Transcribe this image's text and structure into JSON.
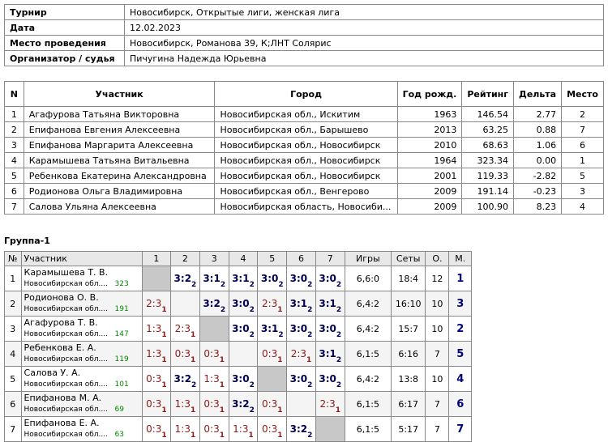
{
  "info": [
    [
      "Турнир",
      "Новосибирск, Открытые лиги, женская лига"
    ],
    [
      "Дата",
      "12.02.2023"
    ],
    [
      "Место проведения",
      "Новосибирск, Романова 39, К;ЛНТ Солярис"
    ],
    [
      "Организатор / судья",
      "Пичугина Надежда Юрьевна"
    ]
  ],
  "participants": {
    "header": [
      "N",
      "Участник",
      "Город",
      "Год рожд.",
      "Рейтинг",
      "Дельта",
      "Место"
    ],
    "rows": [
      [
        "1",
        "Агафурова Татьяна Викторовна",
        "Новосибирская обл., Искитим",
        "1963",
        "146.54",
        "2.77",
        "2"
      ],
      [
        "2",
        "Епифанова Евгения Алексеевна",
        "Новосибирская обл., Барышево",
        "2013",
        "63.25",
        "0.88",
        "7"
      ],
      [
        "3",
        "Епифанова Маргарита Алексеевна",
        "Новосибирская обл., Новосибирск",
        "2010",
        "68.63",
        "1.06",
        "6"
      ],
      [
        "4",
        "Карамышева Татьяна Витальевна",
        "Новосибирская обл., Новосибирск",
        "1964",
        "323.34",
        "0.00",
        "1"
      ],
      [
        "5",
        "Ребенкова Екатерина Александровна",
        "Новосибирская обл., Новосибирск",
        "2001",
        "119.33",
        "-2.82",
        "5"
      ],
      [
        "6",
        "Родионова Ольга Владимировна",
        "Новосибирская обл., Венгерово",
        "2009",
        "191.14",
        "-0.23",
        "3"
      ],
      [
        "7",
        "Салова Ульяна Алексеевна",
        "Новосибирская область, Новосиби...",
        "2009",
        "100.90",
        "8.23",
        "4"
      ]
    ]
  },
  "group": {
    "title": "Группа-1",
    "header": [
      "№",
      "Участник",
      "1",
      "2",
      "3",
      "4",
      "5",
      "6",
      "7",
      "Игры",
      "Сеты",
      "О.",
      "М."
    ],
    "rows": [
      {
        "num": "1",
        "name": "Карамышева Т. В.",
        "city": "Новосибирская обл....",
        "rating": "323",
        "cells": [
          null,
          [
            "3:2",
            "2"
          ],
          [
            "3:1",
            "2"
          ],
          [
            "3:1",
            "2"
          ],
          [
            "3:0",
            "2"
          ],
          [
            "3:0",
            "2"
          ],
          [
            "3:0",
            "2"
          ]
        ],
        "games": "6,6:0",
        "sets": "18:4",
        "points": "12",
        "place": "1"
      },
      {
        "num": "2",
        "name": "Родионова О. В.",
        "city": "Новосибирская обл....",
        "rating": "191",
        "cells": [
          [
            "2:3",
            "1"
          ],
          null,
          [
            "3:2",
            "2"
          ],
          [
            "3:0",
            "2"
          ],
          [
            "2:3",
            "1"
          ],
          [
            "3:1",
            "2"
          ],
          [
            "3:1",
            "2"
          ]
        ],
        "games": "6,4:2",
        "sets": "16:10",
        "points": "10",
        "place": "3"
      },
      {
        "num": "3",
        "name": "Агафурова Т. В.",
        "city": "Новосибирская обл....",
        "rating": "147",
        "cells": [
          [
            "1:3",
            "1"
          ],
          [
            "2:3",
            "1"
          ],
          null,
          [
            "3:0",
            "2"
          ],
          [
            "3:1",
            "2"
          ],
          [
            "3:0",
            "2"
          ],
          [
            "3:0",
            "2"
          ]
        ],
        "games": "6,4:2",
        "sets": "15:7",
        "points": "10",
        "place": "2"
      },
      {
        "num": "4",
        "name": "Ребенкова Е. А.",
        "city": "Новосибирская обл....",
        "rating": "119",
        "cells": [
          [
            "1:3",
            "1"
          ],
          [
            "0:3",
            "1"
          ],
          [
            "0:3",
            "1"
          ],
          null,
          [
            "0:3",
            "1"
          ],
          [
            "2:3",
            "1"
          ],
          [
            "3:1",
            "2"
          ]
        ],
        "games": "6,1:5",
        "sets": "6:16",
        "points": "7",
        "place": "5"
      },
      {
        "num": "5",
        "name": "Салова У. А.",
        "city": "Новосибирская обл....",
        "rating": "101",
        "cells": [
          [
            "0:3",
            "1"
          ],
          [
            "3:2",
            "2"
          ],
          [
            "1:3",
            "1"
          ],
          [
            "3:0",
            "2"
          ],
          null,
          [
            "3:0",
            "2"
          ],
          [
            "3:0",
            "2"
          ]
        ],
        "games": "6,4:2",
        "sets": "13:8",
        "points": "10",
        "place": "4"
      },
      {
        "num": "6",
        "name": "Епифанова М. А.",
        "city": "Новосибирская обл....",
        "rating": "69",
        "cells": [
          [
            "0:3",
            "1"
          ],
          [
            "1:3",
            "1"
          ],
          [
            "0:3",
            "1"
          ],
          [
            "3:2",
            "2"
          ],
          [
            "0:3",
            "1"
          ],
          null,
          [
            "2:3",
            "1"
          ]
        ],
        "games": "6,1:5",
        "sets": "6:17",
        "points": "7",
        "place": "6"
      },
      {
        "num": "7",
        "name": "Епифанова Е. А.",
        "city": "Новосибирская обл....",
        "rating": "63",
        "cells": [
          [
            "0:3",
            "1"
          ],
          [
            "1:3",
            "1"
          ],
          [
            "0:3",
            "1"
          ],
          [
            "1:3",
            "1"
          ],
          [
            "0:3",
            "1"
          ],
          [
            "3:2",
            "2"
          ],
          null
        ],
        "games": "6,1:5",
        "sets": "5:17",
        "points": "7",
        "place": "7"
      }
    ]
  }
}
